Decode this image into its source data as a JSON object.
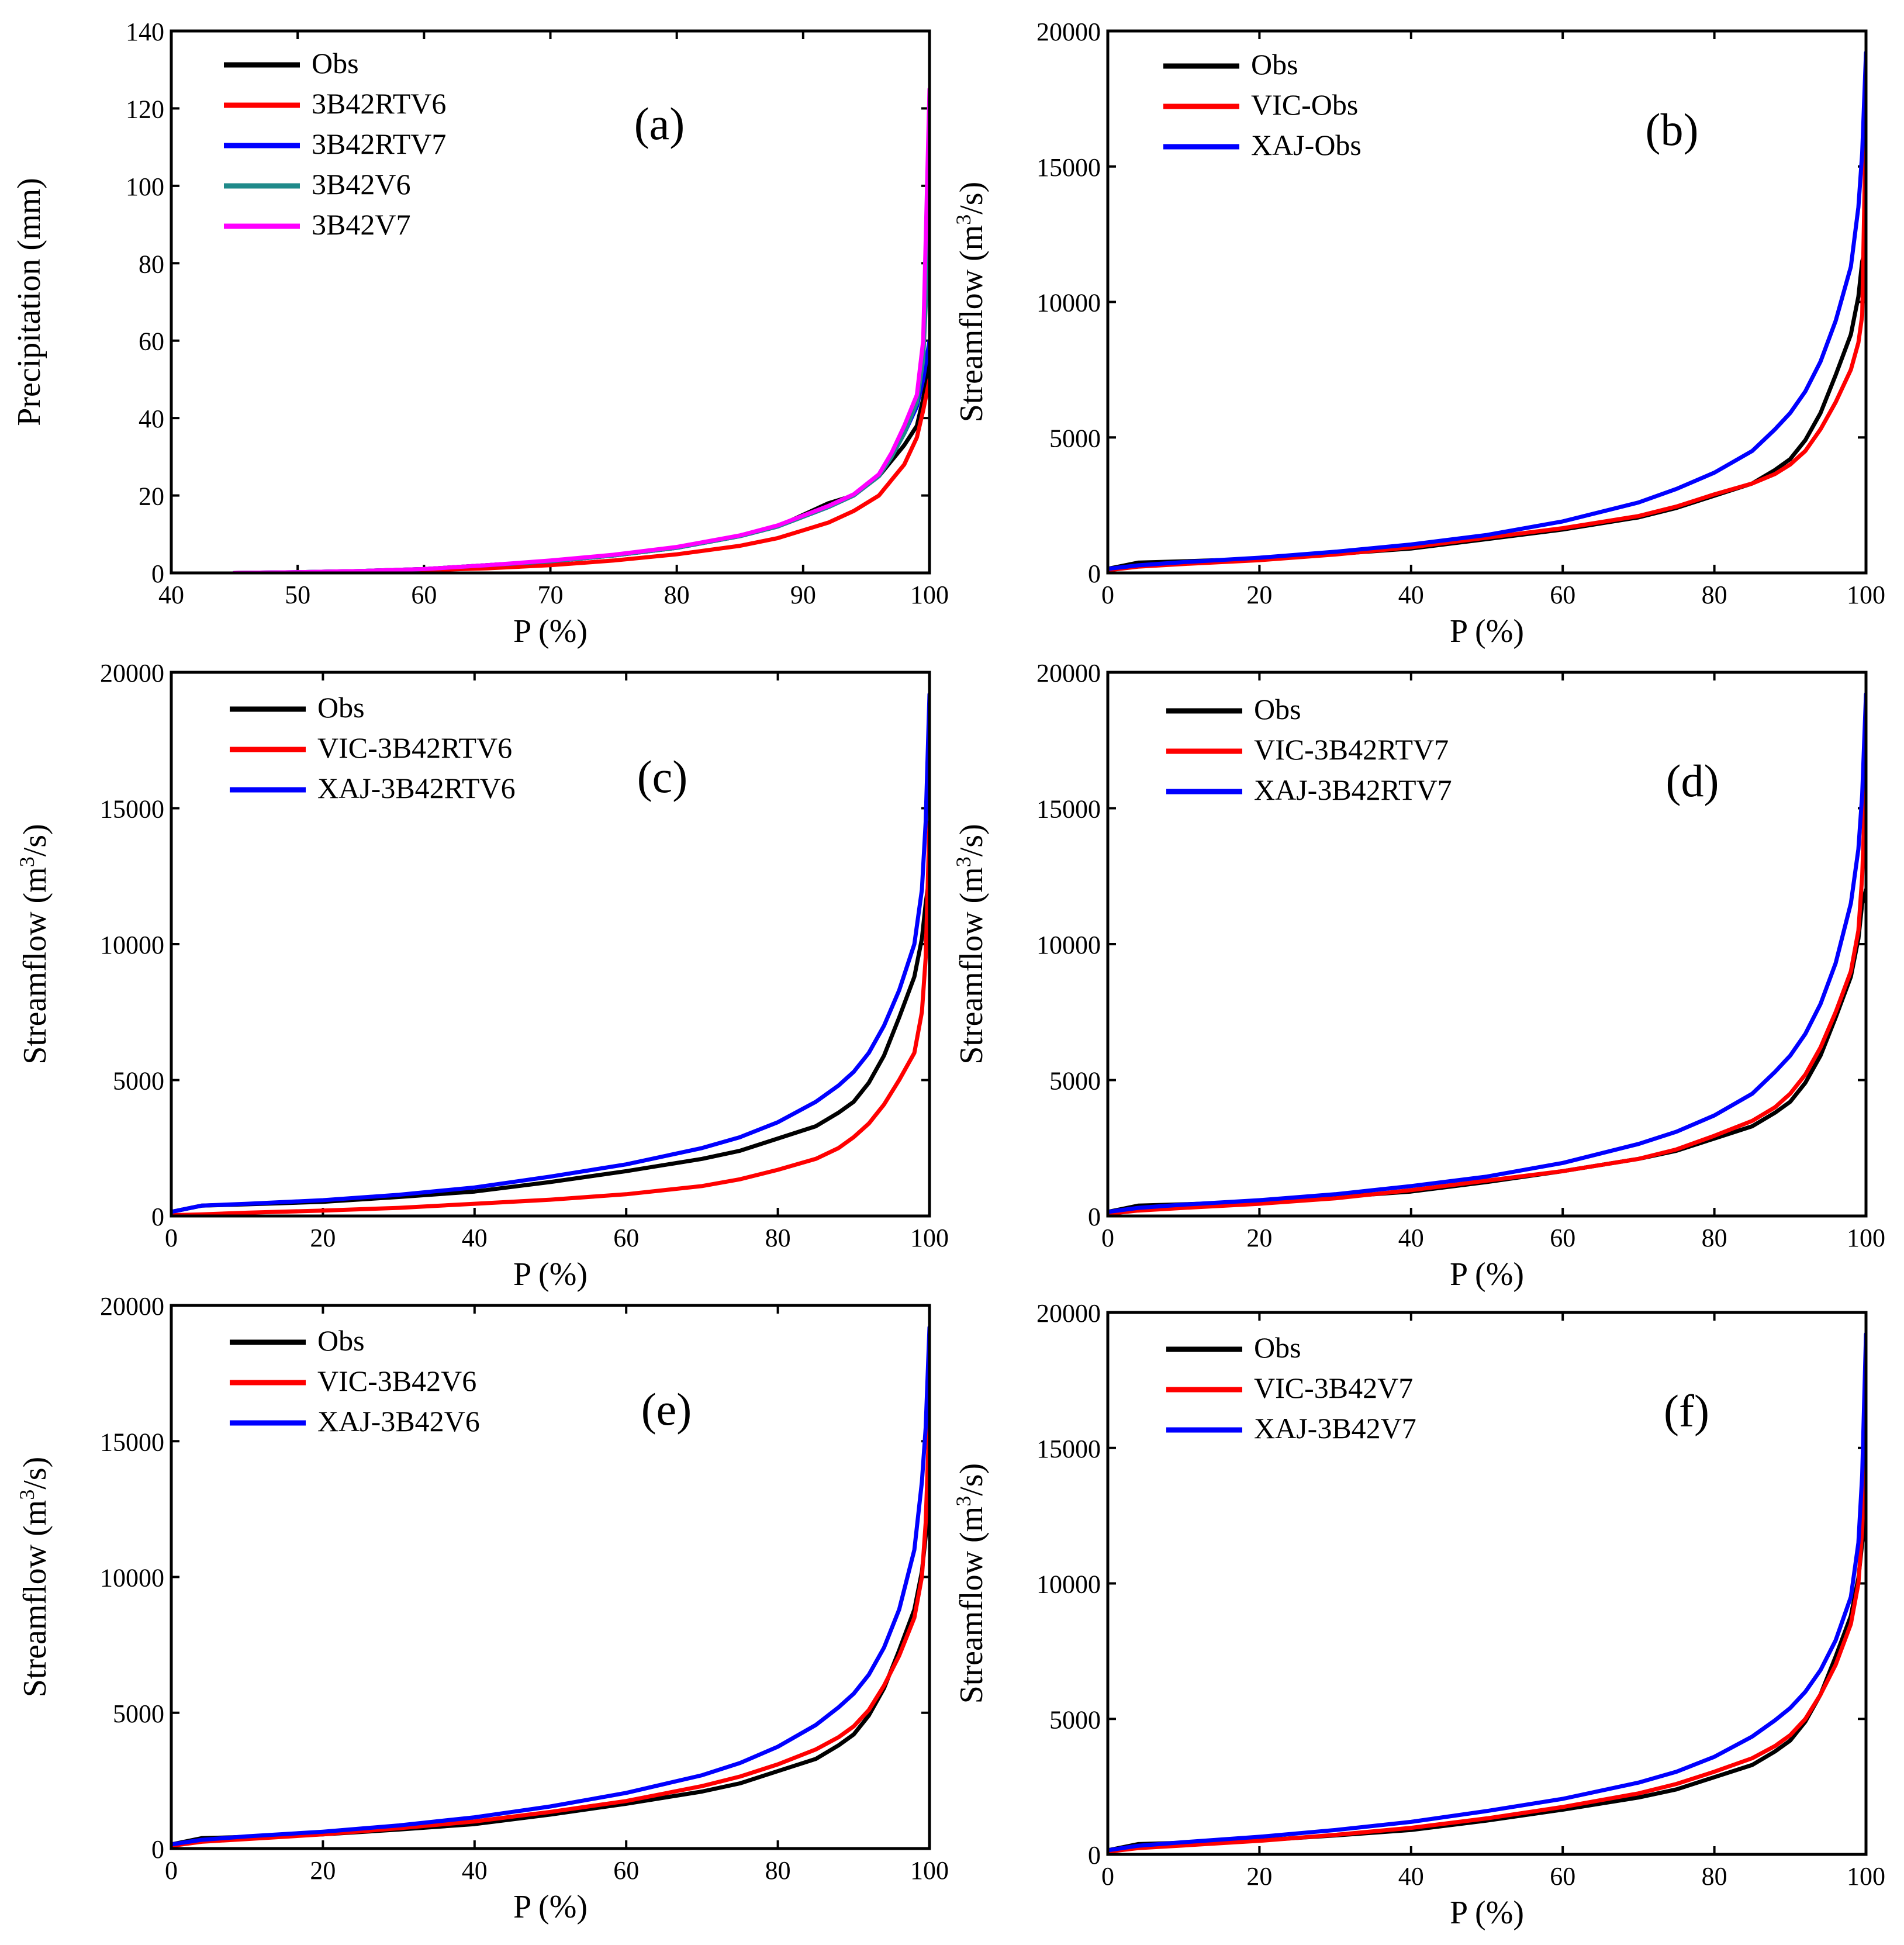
{
  "chart_data": [
    {
      "panel": "(a)",
      "type": "line",
      "xlabel": "P (%)",
      "ylabel": "Precipitation (mm)",
      "xlim": [
        40,
        100
      ],
      "ylim": [
        0,
        140
      ],
      "xticks": [
        40,
        50,
        60,
        70,
        80,
        90,
        100
      ],
      "yticks": [
        0,
        20,
        40,
        60,
        80,
        100,
        120,
        140
      ],
      "series": [
        {
          "name": "Obs",
          "color": "#000000",
          "x": [
            45,
            50,
            55,
            60,
            65,
            70,
            75,
            80,
            85,
            88,
            90,
            92,
            94,
            96,
            97,
            98,
            99,
            99.5,
            100
          ],
          "y": [
            0,
            0.2,
            0.5,
            1.0,
            2.0,
            3.0,
            4.5,
            6.5,
            9.5,
            12,
            15,
            18,
            20,
            25,
            29,
            33,
            38,
            45,
            55
          ]
        },
        {
          "name": "3B42RTV6",
          "color": "#ff0000",
          "x": [
            45,
            50,
            55,
            60,
            65,
            70,
            75,
            80,
            85,
            88,
            90,
            92,
            94,
            96,
            97,
            98,
            99,
            99.5,
            100
          ],
          "y": [
            0,
            0.1,
            0.3,
            0.7,
            1.2,
            2.0,
            3.2,
            4.8,
            7.0,
            9.0,
            11,
            13,
            16,
            20,
            24,
            28,
            35,
            42,
            50
          ]
        },
        {
          "name": "3B42RTV7",
          "color": "#0000ff",
          "x": [
            45,
            50,
            55,
            60,
            65,
            70,
            75,
            80,
            85,
            88,
            90,
            92,
            94,
            96,
            97,
            98,
            99,
            99.5,
            100
          ],
          "y": [
            0,
            0.2,
            0.5,
            1.0,
            2.0,
            3.0,
            4.5,
            6.5,
            9.5,
            12,
            14.5,
            17,
            20,
            25,
            30,
            36,
            43,
            50,
            60
          ]
        },
        {
          "name": "3B42V6",
          "color": "#1f8a8a",
          "x": [
            45,
            50,
            55,
            60,
            65,
            70,
            75,
            80,
            85,
            88,
            90,
            92,
            94,
            96,
            97,
            98,
            99,
            99.5,
            100
          ],
          "y": [
            0,
            0.2,
            0.5,
            1.0,
            2.0,
            3.0,
            4.5,
            6.5,
            9.5,
            12,
            14.5,
            17,
            20,
            25,
            30,
            36,
            44,
            55,
            90
          ]
        },
        {
          "name": "3B42V7",
          "color": "#ff00ff",
          "x": [
            45,
            50,
            55,
            60,
            65,
            70,
            75,
            80,
            85,
            88,
            90,
            92,
            94,
            96,
            97,
            98,
            99,
            99.5,
            100
          ],
          "y": [
            0,
            0.2,
            0.5,
            1.0,
            2.0,
            3.2,
            4.7,
            6.7,
            9.7,
            12.3,
            14.8,
            17.3,
            20.3,
            25.5,
            31,
            38,
            46,
            60,
            125
          ]
        }
      ]
    },
    {
      "panel": "(b)",
      "type": "line",
      "xlabel": "P (%)",
      "ylabel": "Streamflow (m3/s)",
      "xlim": [
        0,
        100
      ],
      "ylim": [
        0,
        20000
      ],
      "xticks": [
        0,
        20,
        40,
        60,
        80,
        100
      ],
      "yticks": [
        0,
        5000,
        10000,
        15000,
        20000
      ],
      "series": [
        {
          "name": "Obs",
          "color": "#000000",
          "x": [
            0,
            4,
            10,
            20,
            30,
            40,
            50,
            60,
            70,
            75,
            80,
            85,
            88,
            90,
            92,
            94,
            96,
            98,
            99,
            99.5,
            100
          ],
          "y": [
            150,
            380,
            430,
            520,
            700,
            900,
            1250,
            1600,
            2050,
            2400,
            2850,
            3300,
            3800,
            4200,
            4900,
            5900,
            7300,
            8800,
            10200,
            11500,
            12000
          ]
        },
        {
          "name": "VIC-Obs",
          "color": "#ff0000",
          "x": [
            0,
            4,
            10,
            20,
            30,
            40,
            50,
            60,
            70,
            75,
            80,
            85,
            88,
            90,
            92,
            94,
            96,
            98,
            99,
            99.5,
            100
          ],
          "y": [
            100,
            230,
            330,
            470,
            680,
            950,
            1300,
            1650,
            2100,
            2450,
            2900,
            3300,
            3650,
            4000,
            4500,
            5300,
            6300,
            7500,
            8500,
            9500,
            17000
          ]
        },
        {
          "name": "XAJ-Obs",
          "color": "#0000ff",
          "x": [
            0,
            4,
            10,
            20,
            30,
            40,
            50,
            60,
            70,
            75,
            80,
            85,
            88,
            90,
            92,
            94,
            96,
            98,
            99,
            99.5,
            100
          ],
          "y": [
            150,
            280,
            400,
            560,
            780,
            1050,
            1400,
            1900,
            2600,
            3100,
            3700,
            4500,
            5300,
            5900,
            6700,
            7800,
            9300,
            11300,
            13500,
            15500,
            19200
          ]
        }
      ]
    },
    {
      "panel": "(c)",
      "type": "line",
      "xlabel": "P (%)",
      "ylabel": "Streamflow (m3/s)",
      "xlim": [
        0,
        100
      ],
      "ylim": [
        0,
        20000
      ],
      "xticks": [
        0,
        20,
        40,
        60,
        80,
        100
      ],
      "yticks": [
        0,
        5000,
        10000,
        15000,
        20000
      ],
      "series": [
        {
          "name": "Obs",
          "color": "#000000",
          "x": [
            0,
            4,
            10,
            20,
            30,
            40,
            50,
            60,
            70,
            75,
            80,
            85,
            88,
            90,
            92,
            94,
            96,
            98,
            99,
            99.5,
            100
          ],
          "y": [
            150,
            380,
            430,
            520,
            700,
            900,
            1250,
            1650,
            2100,
            2400,
            2850,
            3300,
            3800,
            4200,
            4900,
            5900,
            7300,
            8800,
            10200,
            11500,
            12500
          ]
        },
        {
          "name": "VIC-3B42RTV6",
          "color": "#ff0000",
          "x": [
            0,
            4,
            10,
            20,
            30,
            40,
            50,
            60,
            70,
            75,
            80,
            85,
            88,
            90,
            92,
            94,
            96,
            98,
            99,
            99.5,
            100
          ],
          "y": [
            30,
            60,
            120,
            200,
            300,
            450,
            600,
            800,
            1100,
            1350,
            1700,
            2100,
            2500,
            2900,
            3400,
            4100,
            5000,
            6000,
            7500,
            9500,
            14500
          ]
        },
        {
          "name": "XAJ-3B42RTV6",
          "color": "#0000ff",
          "x": [
            0,
            4,
            10,
            20,
            30,
            40,
            50,
            60,
            70,
            75,
            80,
            85,
            88,
            90,
            92,
            94,
            96,
            98,
            99,
            99.5,
            100
          ],
          "y": [
            150,
            380,
            450,
            580,
            780,
            1050,
            1450,
            1900,
            2500,
            2900,
            3450,
            4200,
            4800,
            5300,
            6000,
            7000,
            8300,
            10000,
            12000,
            14500,
            19200
          ]
        }
      ]
    },
    {
      "panel": "(d)",
      "type": "line",
      "xlabel": "P (%)",
      "ylabel": "Streamflow (m3/s)",
      "xlim": [
        0,
        100
      ],
      "ylim": [
        0,
        20000
      ],
      "xticks": [
        0,
        20,
        40,
        60,
        80,
        100
      ],
      "yticks": [
        0,
        5000,
        10000,
        15000,
        20000
      ],
      "series": [
        {
          "name": "Obs",
          "color": "#000000",
          "x": [
            0,
            4,
            10,
            20,
            30,
            40,
            50,
            60,
            70,
            75,
            80,
            85,
            88,
            90,
            92,
            94,
            96,
            98,
            99,
            99.5,
            100
          ],
          "y": [
            150,
            380,
            430,
            520,
            700,
            900,
            1250,
            1650,
            2100,
            2400,
            2850,
            3300,
            3800,
            4200,
            4900,
            5900,
            7300,
            8800,
            10200,
            11500,
            12000
          ]
        },
        {
          "name": "VIC-3B42RTV7",
          "color": "#ff0000",
          "x": [
            0,
            4,
            10,
            20,
            30,
            40,
            50,
            60,
            70,
            75,
            80,
            85,
            88,
            90,
            92,
            94,
            96,
            98,
            99,
            99.5,
            100
          ],
          "y": [
            80,
            200,
            300,
            450,
            650,
            950,
            1300,
            1650,
            2100,
            2450,
            2950,
            3500,
            4000,
            4500,
            5200,
            6200,
            7500,
            9000,
            10500,
            12500,
            16500
          ]
        },
        {
          "name": "XAJ-3B42RTV7",
          "color": "#0000ff",
          "x": [
            0,
            4,
            10,
            20,
            30,
            40,
            50,
            60,
            70,
            75,
            80,
            85,
            88,
            90,
            92,
            94,
            96,
            98,
            99,
            99.5,
            100
          ],
          "y": [
            150,
            300,
            420,
            580,
            800,
            1100,
            1450,
            1950,
            2650,
            3100,
            3700,
            4500,
            5300,
            5900,
            6700,
            7800,
            9300,
            11500,
            13500,
            15500,
            19200
          ]
        }
      ]
    },
    {
      "panel": "(e)",
      "type": "line",
      "xlabel": "P (%)",
      "ylabel": "Streamflow (m3/s)",
      "xlim": [
        0,
        100
      ],
      "ylim": [
        0,
        20000
      ],
      "xticks": [
        0,
        20,
        40,
        60,
        80,
        100
      ],
      "yticks": [
        0,
        5000,
        10000,
        15000,
        20000
      ],
      "series": [
        {
          "name": "Obs",
          "color": "#000000",
          "x": [
            0,
            4,
            10,
            20,
            30,
            40,
            50,
            60,
            70,
            75,
            80,
            85,
            88,
            90,
            92,
            94,
            96,
            98,
            99,
            99.5,
            100
          ],
          "y": [
            150,
            380,
            430,
            520,
            700,
            900,
            1250,
            1650,
            2100,
            2400,
            2850,
            3300,
            3800,
            4200,
            4900,
            5900,
            7300,
            8800,
            10200,
            11500,
            12500
          ]
        },
        {
          "name": "VIC-3B42V6",
          "color": "#ff0000",
          "x": [
            0,
            4,
            10,
            20,
            30,
            40,
            50,
            60,
            70,
            75,
            80,
            85,
            88,
            90,
            92,
            94,
            96,
            98,
            99,
            99.5,
            100
          ],
          "y": [
            100,
            250,
            350,
            520,
            750,
            1000,
            1350,
            1750,
            2300,
            2650,
            3100,
            3650,
            4100,
            4500,
            5100,
            6000,
            7100,
            8500,
            10000,
            12000,
            16000
          ]
        },
        {
          "name": "XAJ-3B42V6",
          "color": "#0000ff",
          "x": [
            0,
            4,
            10,
            20,
            30,
            40,
            50,
            60,
            70,
            75,
            80,
            85,
            88,
            90,
            92,
            94,
            96,
            98,
            99,
            99.5,
            100
          ],
          "y": [
            150,
            320,
            450,
            620,
            850,
            1150,
            1550,
            2050,
            2700,
            3150,
            3750,
            4550,
            5200,
            5700,
            6400,
            7400,
            8800,
            11000,
            13500,
            15500,
            19200
          ]
        }
      ]
    },
    {
      "panel": "(f)",
      "type": "line",
      "xlabel": "P (%)",
      "ylabel": "Streamflow (m3/s)",
      "xlim": [
        0,
        100
      ],
      "ylim": [
        0,
        20000
      ],
      "xticks": [
        0,
        20,
        40,
        60,
        80,
        100
      ],
      "yticks": [
        0,
        5000,
        10000,
        15000,
        20000
      ],
      "series": [
        {
          "name": "Obs",
          "color": "#000000",
          "x": [
            0,
            4,
            10,
            20,
            30,
            40,
            50,
            60,
            70,
            75,
            80,
            85,
            88,
            90,
            92,
            94,
            96,
            98,
            99,
            99.5,
            100
          ],
          "y": [
            150,
            380,
            430,
            520,
            700,
            900,
            1250,
            1650,
            2100,
            2400,
            2850,
            3300,
            3800,
            4200,
            4900,
            5900,
            7300,
            8800,
            10200,
            11500,
            12500
          ]
        },
        {
          "name": "VIC-3B42V7",
          "color": "#ff0000",
          "x": [
            0,
            4,
            10,
            20,
            30,
            40,
            50,
            60,
            70,
            75,
            80,
            85,
            88,
            90,
            92,
            94,
            96,
            98,
            99,
            99.5,
            100
          ],
          "y": [
            100,
            230,
            330,
            500,
            720,
            980,
            1330,
            1750,
            2250,
            2600,
            3050,
            3550,
            4000,
            4400,
            5000,
            5900,
            7000,
            8500,
            10000,
            12000,
            17000
          ]
        },
        {
          "name": "XAJ-3B42V7",
          "color": "#0000ff",
          "x": [
            0,
            4,
            10,
            20,
            30,
            40,
            50,
            60,
            70,
            75,
            80,
            85,
            88,
            90,
            92,
            94,
            96,
            98,
            99,
            99.5,
            100
          ],
          "y": [
            150,
            320,
            450,
            650,
            900,
            1200,
            1600,
            2050,
            2650,
            3050,
            3600,
            4350,
            4950,
            5400,
            6000,
            6800,
            7900,
            9500,
            11500,
            14000,
            19200
          ]
        }
      ]
    }
  ]
}
